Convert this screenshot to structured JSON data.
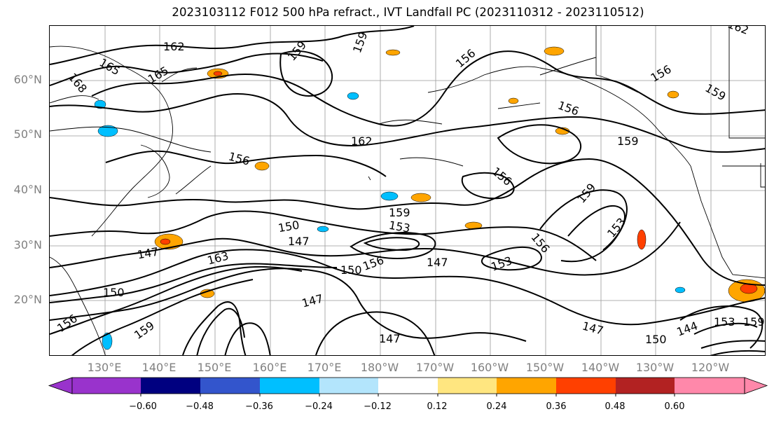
{
  "title": "2023103112 F012 500 hPa refract., IVT Landfall PC (2023110312 - 2023110512)",
  "lat_labels": [
    "60°N",
    "50°N",
    "40°N",
    "30°N",
    "20°N"
  ],
  "lon_labels": [
    "130°E",
    "140°E",
    "150°E",
    "160°E",
    "170°E",
    "180°W",
    "170°W",
    "160°W",
    "150°W",
    "140°W",
    "130°W",
    "120°W"
  ],
  "contour_labels": [
    "162",
    "165",
    "165",
    "168",
    "159",
    "159",
    "162",
    "156",
    "159",
    "156",
    "162",
    "159",
    "156",
    "156",
    "156",
    "159",
    "150",
    "147",
    "159",
    "153",
    "156",
    "153",
    "153",
    "147",
    "163",
    "150",
    "150",
    "156",
    "147",
    "156",
    "147",
    "147",
    "144",
    "147",
    "150",
    "153",
    "159",
    "159"
  ],
  "colorbar": {
    "colors": [
      "#9933cc",
      "#000080",
      "#3355cc",
      "#00bfff",
      "#b3e5fc",
      "#ffffff",
      "#ffe680",
      "#ffa500",
      "#ff4000",
      "#b22222",
      "#ff88aa"
    ],
    "ticks": [
      "−0.60",
      "−0.48",
      "−0.36",
      "−0.24",
      "−0.12",
      "0.12",
      "0.24",
      "0.36",
      "0.48",
      "0.60"
    ]
  },
  "fill_colors": {
    "pos_light": "#ffe680",
    "pos_mid": "#ffa500",
    "pos_strong": "#ff4000",
    "neg_light": "#b3e5fc",
    "neg_mid": "#00bfff"
  }
}
